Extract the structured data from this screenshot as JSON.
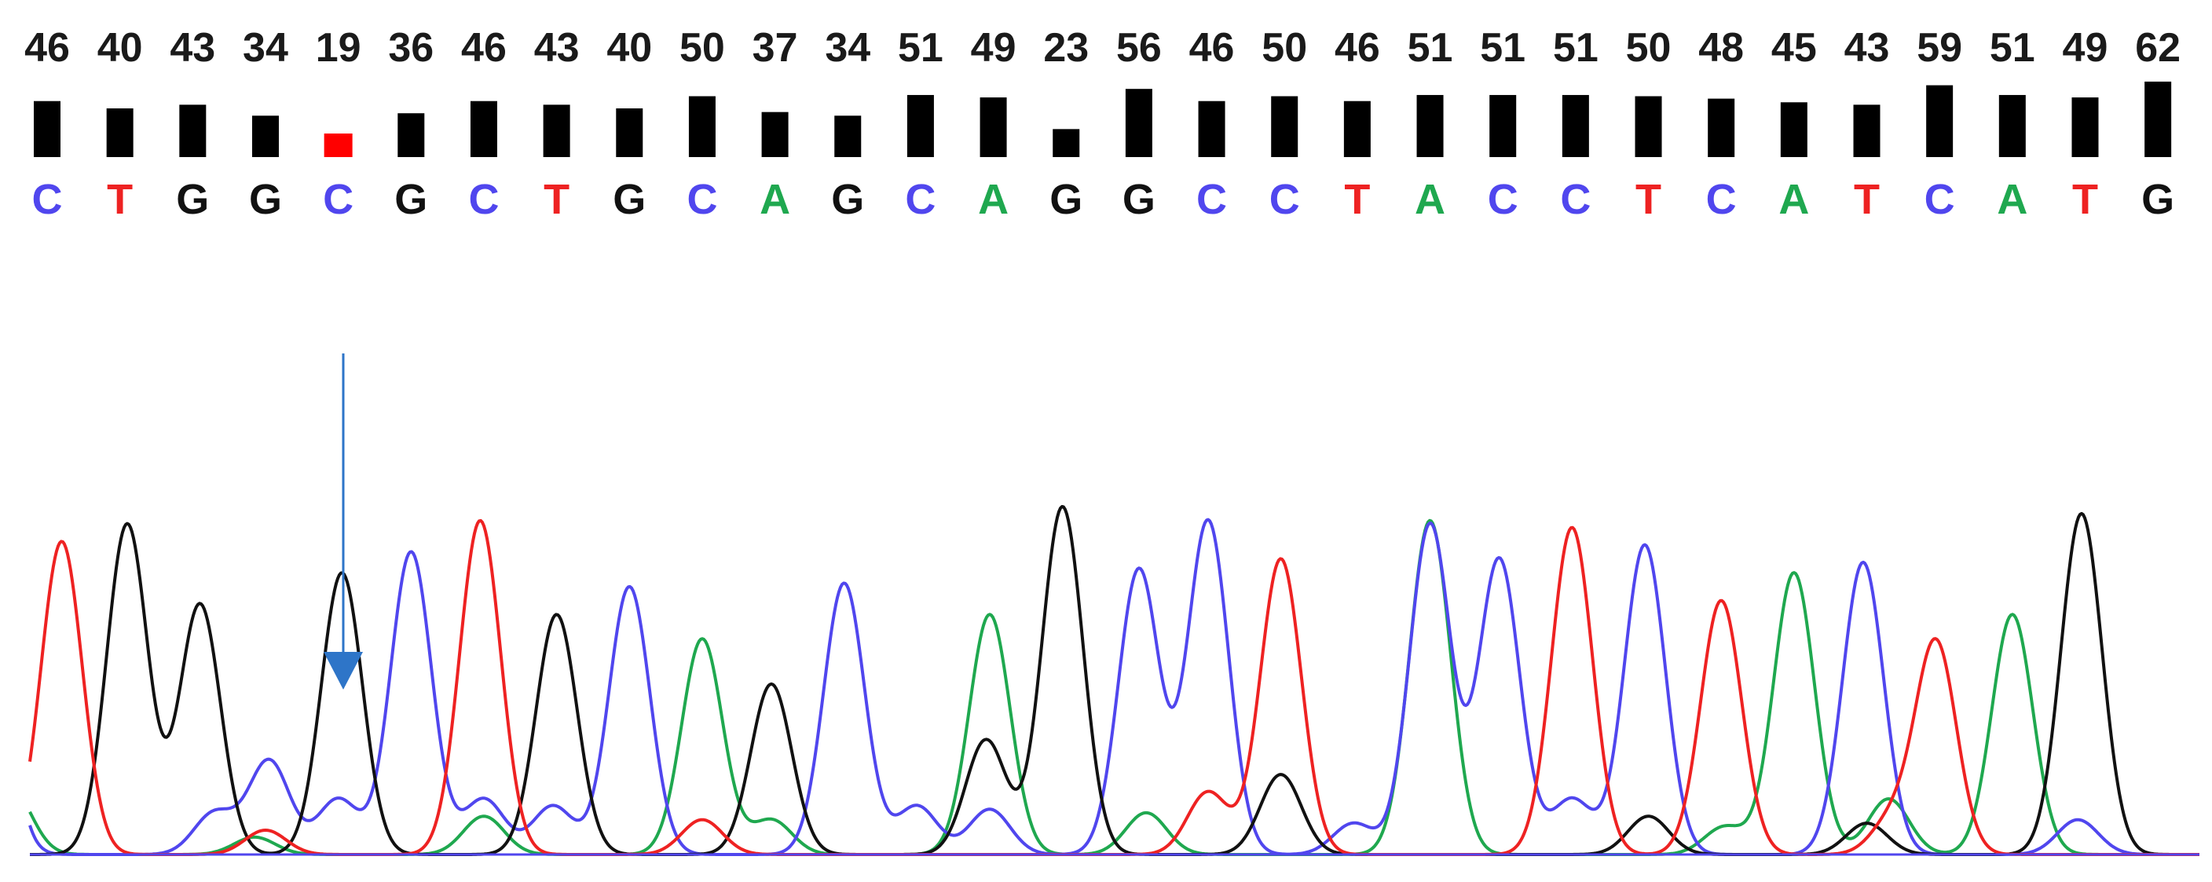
{
  "chart_data": {
    "type": "line",
    "title": "",
    "xlabel": "",
    "ylabel": "",
    "quality_threshold": 20,
    "colors": {
      "A": "#1fa84f",
      "C": "#5046ee",
      "G": "#111111",
      "T": "#ee2222",
      "bar_ok": "#000000",
      "bar_low": "#ff0000",
      "arrow": "#2e75c8"
    },
    "bases": [
      {
        "pos": 1,
        "base": "C",
        "qv": "46"
      },
      {
        "pos": 2,
        "base": "T",
        "qv": "40"
      },
      {
        "pos": 3,
        "base": "G",
        "qv": "43"
      },
      {
        "pos": 4,
        "base": "G",
        "qv": "34"
      },
      {
        "pos": 5,
        "base": "C",
        "qv": "19"
      },
      {
        "pos": 6,
        "base": "G",
        "qv": "36"
      },
      {
        "pos": 7,
        "base": "C",
        "qv": "46"
      },
      {
        "pos": 8,
        "base": "T",
        "qv": "43"
      },
      {
        "pos": 9,
        "base": "G",
        "qv": "40"
      },
      {
        "pos": 10,
        "base": "C",
        "qv": "50"
      },
      {
        "pos": 11,
        "base": "A",
        "qv": "37"
      },
      {
        "pos": 12,
        "base": "G",
        "qv": "34"
      },
      {
        "pos": 13,
        "base": "C",
        "qv": "51"
      },
      {
        "pos": 14,
        "base": "A",
        "qv": "49"
      },
      {
        "pos": 15,
        "base": "G",
        "qv": "23"
      },
      {
        "pos": 16,
        "base": "G",
        "qv": "56"
      },
      {
        "pos": 17,
        "base": "C",
        "qv": "46"
      },
      {
        "pos": 18,
        "base": "C",
        "qv": "50"
      },
      {
        "pos": 19,
        "base": "T",
        "qv": "46"
      },
      {
        "pos": 20,
        "base": "A",
        "qv": "51"
      },
      {
        "pos": 21,
        "base": "C",
        "qv": "51"
      },
      {
        "pos": 22,
        "base": "C",
        "qv": "51"
      },
      {
        "pos": 23,
        "base": "T",
        "qv": "50"
      },
      {
        "pos": 24,
        "base": "C",
        "qv": "48"
      },
      {
        "pos": 25,
        "base": "A",
        "qv": "45"
      },
      {
        "pos": 26,
        "base": "T",
        "qv": "43"
      },
      {
        "pos": 27,
        "base": "C",
        "qv": "59"
      },
      {
        "pos": 28,
        "base": "A",
        "qv": "51"
      },
      {
        "pos": 29,
        "base": "T",
        "qv": "49"
      },
      {
        "pos": 30,
        "base": "G",
        "qv": "62"
      }
    ],
    "series": [
      {
        "base": "A",
        "peaks": [
          {
            "pos": 0.5,
            "h": 0.19
          },
          {
            "pos": 3.85,
            "h": 0.05
          },
          {
            "pos": 7.0,
            "h": 0.11
          },
          {
            "pos": 10.0,
            "h": 0.62
          },
          {
            "pos": 10.95,
            "h": 0.1
          },
          {
            "pos": 13.95,
            "h": 0.69
          },
          {
            "pos": 16.1,
            "h": 0.12
          },
          {
            "pos": 20.0,
            "h": 0.96
          },
          {
            "pos": 24.05,
            "h": 0.08
          },
          {
            "pos": 25.0,
            "h": 0.81
          },
          {
            "pos": 26.3,
            "h": 0.16
          },
          {
            "pos": 28.0,
            "h": 0.69
          }
        ]
      },
      {
        "base": "C",
        "peaks": [
          {
            "pos": 0.15,
            "h": 0.91
          },
          {
            "pos": 3.3,
            "h": 0.12
          },
          {
            "pos": 4.05,
            "h": 0.27
          },
          {
            "pos": 5.0,
            "h": 0.16
          },
          {
            "pos": 6.0,
            "h": 0.87
          },
          {
            "pos": 7.0,
            "h": 0.16
          },
          {
            "pos": 7.95,
            "h": 0.14
          },
          {
            "pos": 9.0,
            "h": 0.77
          },
          {
            "pos": 11.95,
            "h": 0.78
          },
          {
            "pos": 12.95,
            "h": 0.14
          },
          {
            "pos": 13.95,
            "h": 0.13
          },
          {
            "pos": 16.0,
            "h": 0.82
          },
          {
            "pos": 16.95,
            "h": 0.96
          },
          {
            "pos": 18.95,
            "h": 0.09
          },
          {
            "pos": 20.0,
            "h": 0.95
          },
          {
            "pos": 20.95,
            "h": 0.85
          },
          {
            "pos": 21.95,
            "h": 0.16
          },
          {
            "pos": 22.95,
            "h": 0.89
          },
          {
            "pos": 25.95,
            "h": 0.84
          },
          {
            "pos": 28.9,
            "h": 0.1
          }
        ]
      },
      {
        "base": "G",
        "peaks": [
          {
            "pos": 2.1,
            "h": 0.95
          },
          {
            "pos": 3.1,
            "h": 0.72
          },
          {
            "pos": 5.05,
            "h": 0.81
          },
          {
            "pos": 8.0,
            "h": 0.69
          },
          {
            "pos": 10.95,
            "h": 0.49
          },
          {
            "pos": 13.9,
            "h": 0.33
          },
          {
            "pos": 14.95,
            "h": 1.0
          },
          {
            "pos": 17.95,
            "h": 0.23
          },
          {
            "pos": 23.0,
            "h": 0.11
          },
          {
            "pos": 26.0,
            "h": 0.09
          },
          {
            "pos": 28.95,
            "h": 0.98
          }
        ]
      },
      {
        "base": "T",
        "peaks": [
          {
            "pos": 1.2,
            "h": 0.9
          },
          {
            "pos": 4.0,
            "h": 0.07
          },
          {
            "pos": 6.95,
            "h": 0.96
          },
          {
            "pos": 10.0,
            "h": 0.1
          },
          {
            "pos": 16.95,
            "h": 0.18
          },
          {
            "pos": 17.95,
            "h": 0.85
          },
          {
            "pos": 21.95,
            "h": 0.94
          },
          {
            "pos": 24.0,
            "h": 0.73
          },
          {
            "pos": 26.35,
            "h": 0.1
          },
          {
            "pos": 26.95,
            "h": 0.61
          }
        ]
      }
    ]
  }
}
